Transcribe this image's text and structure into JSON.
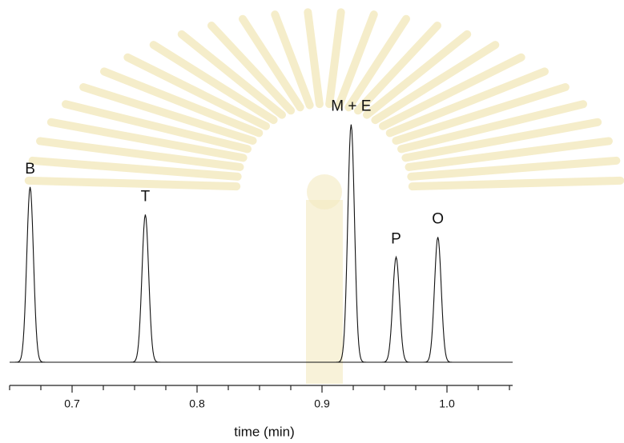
{
  "chart_data": {
    "type": "chromatogram",
    "x_label": "time (min)",
    "xlim": [
      0.65,
      1.05
    ],
    "xticks": [
      0.7,
      0.8,
      0.9,
      {
        "value": 1,
        "label": "1.0"
      }
    ],
    "xminorticks": [
      0.65,
      0.675,
      0.725,
      0.75,
      0.775,
      0.825,
      0.85,
      0.875,
      0.925,
      0.95,
      0.975,
      1.025,
      1.05
    ],
    "ylim": [
      0,
      100
    ],
    "color": "#111111",
    "peaks": {
      "labels": [
        "B",
        "T",
        "M + E",
        "P",
        "O"
      ],
      "x": [
        0.6664,
        0.7586,
        0.9233,
        0.9593,
        0.9927
      ],
      "values": [
        70,
        59,
        95,
        42,
        50
      ]
    }
  }
}
